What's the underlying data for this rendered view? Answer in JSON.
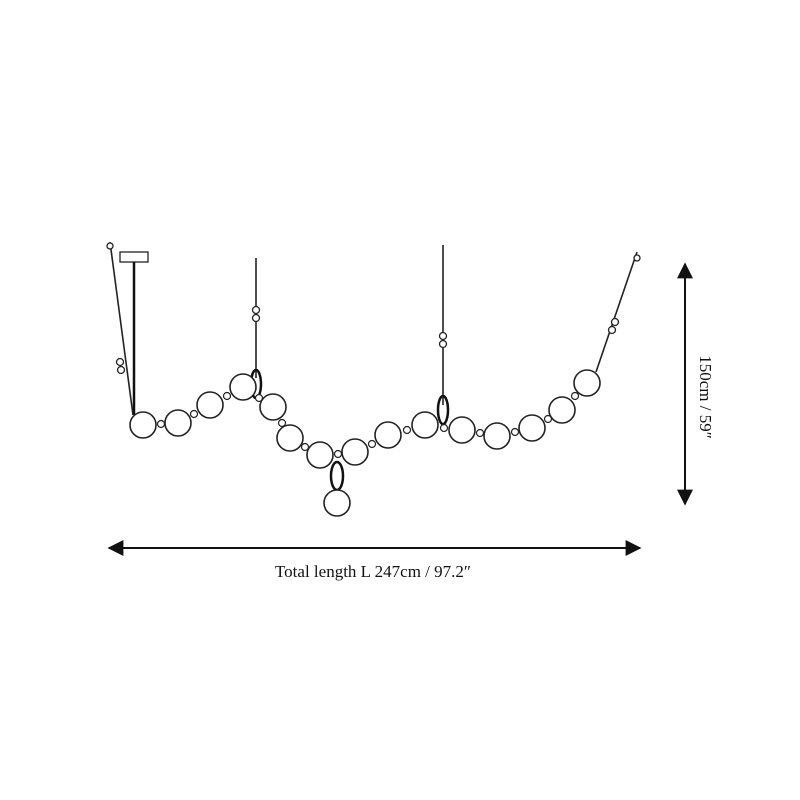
{
  "dimensions": {
    "length": "Total length L 247cm / 97.2″",
    "height": "150cm / 59″"
  }
}
